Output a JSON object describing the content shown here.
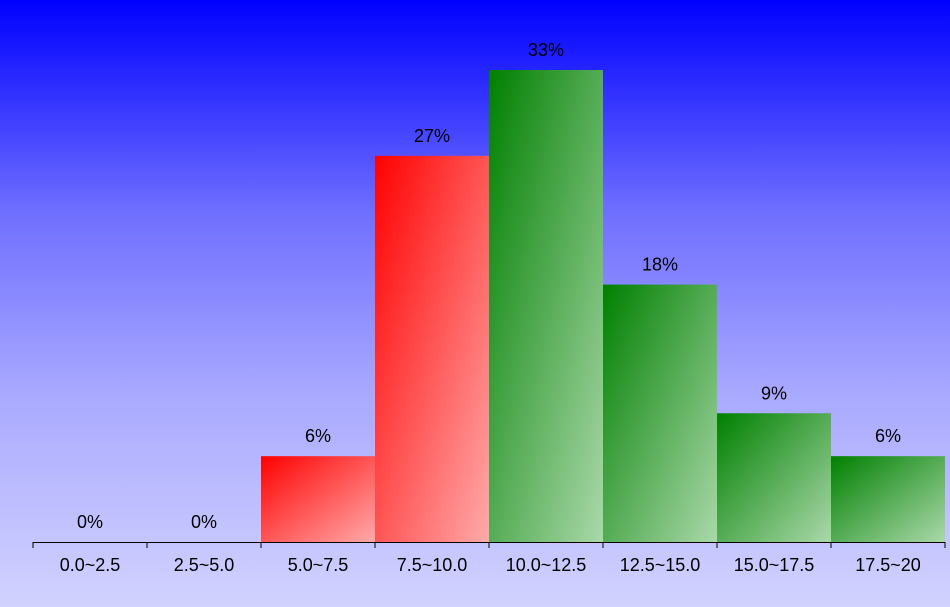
{
  "chart_data": {
    "type": "bar",
    "categories": [
      "0.0~2.5",
      "2.5~5.0",
      "5.0~7.5",
      "7.5~10.0",
      "10.0~12.5",
      "12.5~15.0",
      "15.0~17.5",
      "17.5~20"
    ],
    "values": [
      0,
      0,
      6,
      27,
      33,
      18,
      9,
      6
    ],
    "data_labels": [
      "0%",
      "0%",
      "6%",
      "27%",
      "33%",
      "18%",
      "9%",
      "6%"
    ],
    "ylim": [
      0,
      33
    ],
    "grid": false,
    "legend": "none",
    "colors": {
      "highlight": "#ff0000",
      "highlight_light": "#ffaaaa",
      "normal": "#008000",
      "normal_light": "#aad8aa",
      "axis": "#000000"
    },
    "bar_colors": [
      "normal",
      "normal",
      "highlight",
      "highlight",
      "normal",
      "normal",
      "normal",
      "normal"
    ]
  }
}
